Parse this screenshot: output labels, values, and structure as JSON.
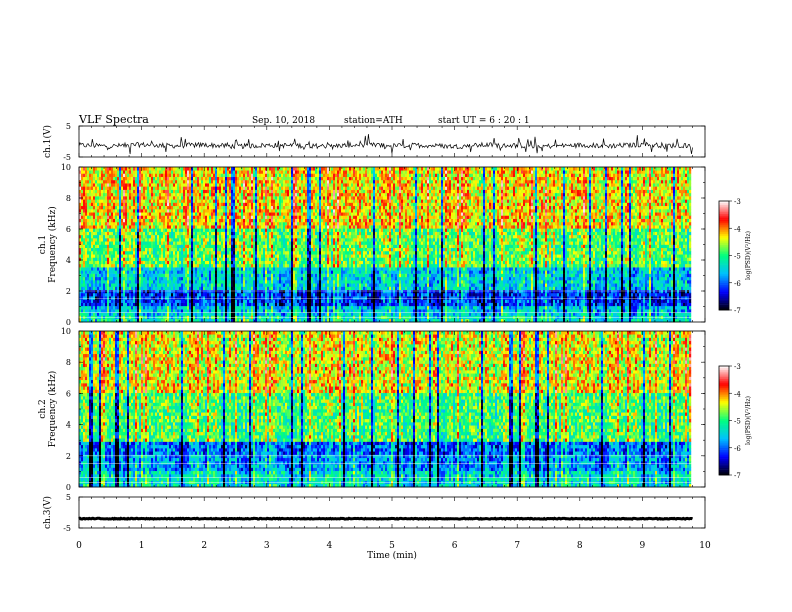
{
  "header": {
    "title": "VLF  Spectra",
    "date": "Sep. 10, 2018",
    "station": "station=ATH",
    "start": "start  UT  =    6  : 20 : 1"
  },
  "colors": {
    "colormap": [
      "#000000",
      "#0000ff",
      "#00c0ff",
      "#00ff80",
      "#ffff00",
      "#ff0000",
      "#ffffff"
    ],
    "waveform": "#000000"
  },
  "chart_data": [
    {
      "type": "line",
      "name": "ch1-waveform",
      "ylabel": "ch.1(V)",
      "ylim": [
        -5,
        5
      ],
      "yticks": [
        "5",
        "-5"
      ],
      "xlim": [
        0,
        10
      ],
      "x": [
        0,
        0.5,
        1,
        1.5,
        2,
        2.5,
        3,
        3.5,
        4,
        4.5,
        5,
        5.5,
        6,
        6.5,
        7,
        7.5,
        8,
        8.5,
        9,
        9.5,
        9.8
      ],
      "y": [
        -1.2,
        -1.5,
        -1.0,
        -1.4,
        -1.1,
        -1.6,
        -1.2,
        -1.3,
        -1.5,
        -1.0,
        -1.4,
        -1.2,
        -1.6,
        -1.1,
        -1.3,
        -1.5,
        -1.2,
        -1.4,
        -1.0,
        -1.3,
        -1.2
      ]
    },
    {
      "type": "heatmap",
      "name": "ch1-spectrogram",
      "ylabel": "ch.1\nFrequency  (kHz)",
      "ylim": [
        0,
        10
      ],
      "yticks": [
        "0",
        "2",
        "4",
        "6",
        "8",
        "10"
      ],
      "xlim": [
        0,
        10
      ],
      "data_x_max": 9.8,
      "colorbar": {
        "label": "log(PSD)(V²/Hz)",
        "range": [
          -7,
          -3
        ],
        "ticks": [
          "-3",
          "-4",
          "-5",
          "-6",
          "-7"
        ]
      },
      "band_levels": [
        {
          "f": [
            0,
            0.5
          ],
          "level": -5.3
        },
        {
          "f": [
            0.5,
            1.0
          ],
          "level": -5.6
        },
        {
          "f": [
            1.0,
            2.0
          ],
          "level": -6.2
        },
        {
          "f": [
            2.0,
            3.5
          ],
          "level": -5.5
        },
        {
          "f": [
            3.5,
            6.0
          ],
          "level": -4.8
        },
        {
          "f": [
            6.0,
            10.0
          ],
          "level": -4.3
        }
      ]
    },
    {
      "type": "heatmap",
      "name": "ch2-spectrogram",
      "ylabel": "ch.2\nFrequency  (kHz)",
      "ylim": [
        0,
        10
      ],
      "yticks": [
        "0",
        "2",
        "4",
        "6",
        "8",
        "10"
      ],
      "xlim": [
        0,
        10
      ],
      "data_x_max": 9.8,
      "colorbar": {
        "label": "log(PSD)(V²/Hz)",
        "range": [
          -7,
          -3
        ],
        "ticks": [
          "-3",
          "-4",
          "-5",
          "-6",
          "-7"
        ]
      },
      "band_levels": [
        {
          "f": [
            0,
            1.0
          ],
          "level": -5.4
        },
        {
          "f": [
            1.0,
            2.0
          ],
          "level": -5.8
        },
        {
          "f": [
            2.0,
            3.0
          ],
          "level": -6.0
        },
        {
          "f": [
            3.0,
            6.0
          ],
          "level": -4.9
        },
        {
          "f": [
            6.0,
            10.0
          ],
          "level": -4.4
        }
      ]
    },
    {
      "type": "line",
      "name": "ch3-waveform",
      "ylabel": "ch.3(V)",
      "ylim": [
        -5,
        5
      ],
      "yticks": [
        "5",
        "-5"
      ],
      "xlim": [
        0,
        10
      ],
      "x": [
        0,
        9.8
      ],
      "y": [
        -2,
        -2
      ]
    }
  ],
  "time_axis": {
    "xlabel": "Time  (min)",
    "ticks": [
      "0",
      "1",
      "2",
      "3",
      "4",
      "5",
      "6",
      "7",
      "8",
      "9",
      "10"
    ],
    "range": [
      0,
      10
    ]
  }
}
